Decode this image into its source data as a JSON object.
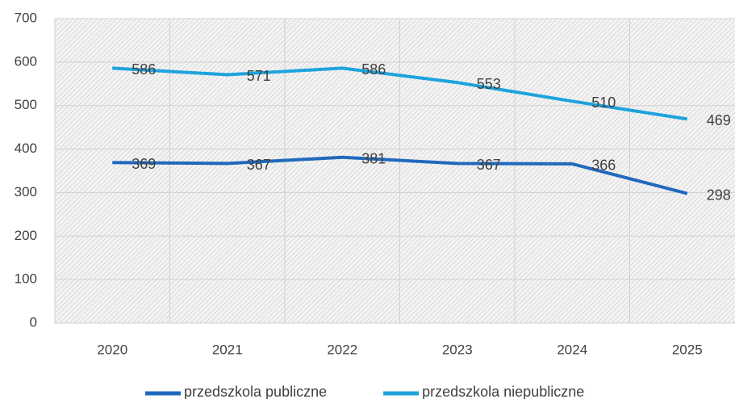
{
  "chart_data": {
    "type": "line",
    "categories": [
      "2020",
      "2021",
      "2022",
      "2023",
      "2024",
      "2025"
    ],
    "series": [
      {
        "name": "przedszkola publiczne",
        "color": "#2169bd",
        "values": [
          369,
          367,
          381,
          367,
          366,
          298
        ]
      },
      {
        "name": "przedszkola niepubliczne",
        "color": "#1ea3dc",
        "values": [
          586,
          571,
          586,
          553,
          510,
          469
        ]
      }
    ],
    "ylim": [
      0,
      700
    ],
    "yticks": [
      0,
      100,
      200,
      300,
      400,
      500,
      600,
      700
    ],
    "grid": true,
    "legend": "bottom"
  }
}
